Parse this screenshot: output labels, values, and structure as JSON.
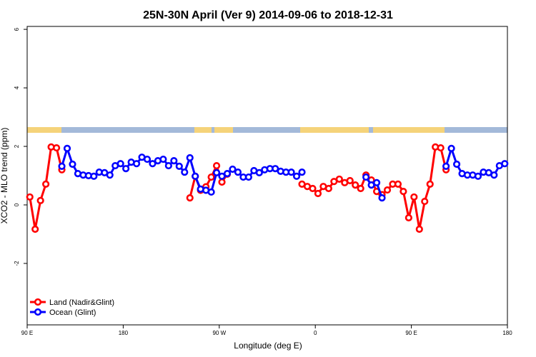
{
  "chart_data": {
    "type": "line",
    "title": "25N-30N April (Ver 9)   2014-09-06 to 2018-12-31",
    "xlabel": "Longitude (deg E)",
    "ylabel": "XCO2 - MLO trend (ppm)",
    "x": [
      92.5,
      97.5,
      102.5,
      107.5,
      112.5,
      117.5,
      122.5,
      127.5,
      132.5,
      137.5,
      142.5,
      147.5,
      152.5,
      157.5,
      162.5,
      167.5,
      172.5,
      177.5,
      182.5,
      187.5,
      192.5,
      197.5,
      202.5,
      207.5,
      212.5,
      217.5,
      222.5,
      227.5,
      232.5,
      237.5,
      242.5,
      247.5,
      252.5,
      257.5,
      262.5,
      267.5,
      272.5,
      277.5,
      282.5,
      287.5,
      292.5,
      297.5,
      302.5,
      307.5,
      312.5,
      317.5,
      322.5,
      327.5,
      332.5,
      337.5,
      342.5,
      347.5,
      352.5,
      357.5,
      362.5,
      367.5,
      372.5,
      377.5,
      382.5,
      387.5,
      392.5,
      397.5,
      402.5,
      407.5,
      412.5,
      417.5,
      422.5,
      427.5,
      432.5,
      437.5,
      442.5,
      447.5,
      452.5,
      457.5,
      462.5,
      467.5,
      472.5,
      477.5,
      482.5,
      487.5,
      492.5,
      497.5,
      502.5,
      507.5,
      512.5,
      517.5,
      522.5,
      527.5,
      532.5,
      537.5
    ],
    "series": [
      {
        "name": "Land (Nadir&Glint)",
        "color": "#ff0000",
        "values": [
          0.27,
          -0.83,
          0.15,
          0.71,
          1.98,
          1.95,
          1.2,
          null,
          null,
          null,
          null,
          null,
          null,
          null,
          null,
          null,
          null,
          null,
          null,
          null,
          null,
          null,
          null,
          null,
          null,
          null,
          null,
          null,
          null,
          null,
          0.24,
          0.98,
          0.5,
          0.62,
          0.95,
          1.34,
          0.78,
          1.05,
          null,
          null,
          null,
          null,
          null,
          null,
          null,
          null,
          null,
          null,
          null,
          null,
          null,
          0.71,
          0.63,
          0.56,
          0.39,
          0.63,
          0.56,
          0.8,
          0.88,
          0.76,
          0.83,
          0.68,
          0.56,
          1.02,
          0.85,
          0.46,
          0.35,
          0.51,
          0.71,
          0.71,
          0.46,
          -0.44,
          0.27,
          -0.83,
          0.12,
          0.71,
          1.98,
          1.95,
          1.2,
          null,
          null,
          null,
          null,
          null,
          null,
          null,
          null,
          null,
          null,
          null
        ]
      },
      {
        "name": "Ocean (Glint)",
        "color": "#0000ff",
        "values": [
          null,
          null,
          null,
          null,
          null,
          null,
          1.32,
          1.93,
          1.39,
          1.07,
          1.02,
          1.0,
          0.98,
          1.12,
          1.1,
          1.02,
          1.34,
          1.41,
          1.24,
          1.46,
          1.41,
          1.63,
          1.56,
          1.41,
          1.51,
          1.56,
          1.34,
          1.51,
          1.32,
          1.12,
          1.61,
          0.98,
          0.54,
          0.5,
          0.44,
          1.1,
          0.98,
          1.07,
          1.22,
          1.12,
          0.95,
          0.95,
          1.17,
          1.1,
          1.2,
          1.24,
          1.24,
          1.15,
          1.12,
          1.12,
          0.98,
          1.12,
          null,
          null,
          null,
          null,
          null,
          null,
          null,
          null,
          null,
          null,
          null,
          0.95,
          0.68,
          0.76,
          0.24,
          null,
          null,
          null,
          null,
          null,
          null,
          null,
          null,
          null,
          null,
          null,
          1.32,
          1.93,
          1.39,
          1.07,
          1.02,
          1.02,
          0.98,
          1.12,
          1.1,
          1.02,
          1.34,
          1.41
        ]
      }
    ],
    "xlim": [
      90,
      540
    ],
    "xticks": [
      {
        "value": 90,
        "label": "90 E"
      },
      180,
      {
        "value": 270,
        "label": "90 W"
      },
      {
        "value": 360,
        "label": "0"
      },
      {
        "value": 450,
        "label": "90 E"
      },
      {
        "value": 540,
        "label": "180"
      }
    ],
    "ylim": [
      -4.1,
      6.1
    ],
    "yticks": [
      -2,
      0,
      2,
      4,
      6
    ],
    "legend": "bottom-left"
  }
}
